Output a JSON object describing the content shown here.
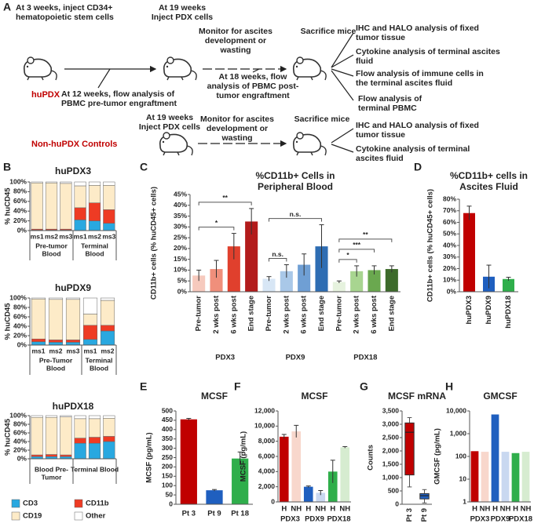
{
  "panel_labels": [
    "A",
    "B",
    "C",
    "D",
    "E",
    "F",
    "G",
    "H"
  ],
  "diagram": {
    "huPDX": {
      "label": "huPDX",
      "steps": [
        [
          "At 3 weeks, inject CD34+",
          "hematopoietic stem cells"
        ],
        [
          "At 19 weeks",
          "Inject PDX cells"
        ],
        [
          "Monitor for ascites",
          "development or",
          "wasting"
        ],
        [
          "Sacrifice mice"
        ]
      ],
      "flow_steps": [
        [
          "At 12 weeks, flow analysis of",
          "PBMC pre-tumor engraftment"
        ],
        [
          "At 18 weeks, flow",
          "analysis of PBMC post-",
          "tumor engraftment"
        ]
      ],
      "outcomes": [
        [
          "IHC and HALO analysis of fixed",
          "tumor tissue"
        ],
        [
          "Cytokine analysis of terminal ascites",
          "fluid"
        ],
        [
          "Flow analysis of immune cells in",
          "the terminal ascites fluid"
        ],
        [
          "Flow analysis of",
          "terminal PBMC"
        ]
      ]
    },
    "controls": {
      "label": "Non-huPDX Controls",
      "steps": [
        [
          "At 19 weeks",
          "Inject PDX cells"
        ],
        [
          "Monitor for ascites",
          "development or",
          "wasting"
        ],
        [
          "Sacrifice mice"
        ]
      ],
      "outcomes": [
        [
          "IHC and HALO analysis of fixed",
          "tumor tissue"
        ],
        [
          "Cytokine analysis of terminal",
          "ascites fluid"
        ]
      ]
    }
  },
  "chart_data": [
    {
      "type": "stacked_bar",
      "title": "huPDX3",
      "ylabel": "% huCD45",
      "ylim": [
        0,
        100
      ],
      "yticks": [
        {
          "value": 0,
          "label": "0%"
        },
        {
          "value": 20,
          "label": "20%"
        },
        {
          "value": 40,
          "label": "40%"
        },
        {
          "value": 60,
          "label": "60%"
        },
        {
          "value": 80,
          "label": "80%"
        },
        {
          "value": 100,
          "label": "100%"
        }
      ],
      "groups": [
        {
          "label": [
            "Pre-tumor",
            "Blood"
          ],
          "categories": [
            "ms1",
            "ms2",
            "ms3"
          ]
        },
        {
          "label": [
            "Terminal",
            "Blood"
          ],
          "categories": [
            "ms1",
            "ms2",
            "ms3"
          ]
        }
      ],
      "series": [
        {
          "color": "#29a8e0",
          "values": [
            1,
            1,
            1,
            22,
            20,
            15
          ]
        },
        {
          "color": "#ee3b24",
          "values": [
            2,
            2,
            2,
            25,
            37,
            28
          ]
        },
        {
          "color": "#fdebc8",
          "values": [
            95,
            95,
            94,
            45,
            36,
            50
          ]
        },
        {
          "color": "#ffffff",
          "values": [
            2,
            2,
            3,
            8,
            7,
            7
          ]
        }
      ]
    },
    {
      "type": "stacked_bar",
      "title": "huPDX9",
      "ylabel": "% huCD45",
      "ylim": [
        0,
        100
      ],
      "yticks": [
        {
          "value": 0,
          "label": "0%"
        },
        {
          "value": 20,
          "label": "20%"
        },
        {
          "value": 40,
          "label": "40%"
        },
        {
          "value": 60,
          "label": "60%"
        },
        {
          "value": 80,
          "label": "80%"
        },
        {
          "value": 100,
          "label": "100%"
        }
      ],
      "groups": [
        {
          "label": [
            "Pre-Tumor",
            "Blood"
          ],
          "categories": [
            "ms1",
            "ms2",
            "ms3"
          ]
        },
        {
          "label": [
            "Terminal",
            "Blood"
          ],
          "categories": [
            "ms1",
            "ms2"
          ]
        }
      ],
      "series": [
        {
          "color": "#29a8e0",
          "values": [
            7,
            6,
            6,
            12,
            30
          ]
        },
        {
          "color": "#ee3b24",
          "values": [
            6,
            5,
            5,
            30,
            12
          ]
        },
        {
          "color": "#fdebc8",
          "values": [
            85,
            86,
            86,
            24,
            53
          ]
        },
        {
          "color": "#ffffff",
          "values": [
            2,
            3,
            3,
            34,
            5
          ]
        }
      ]
    },
    {
      "type": "stacked_bar",
      "title": "huPDX18",
      "ylabel": "% huCD45",
      "ylim": [
        0,
        100
      ],
      "legend": "bottom",
      "yticks": [
        {
          "value": 0,
          "label": "0%"
        },
        {
          "value": 20,
          "label": "20%"
        },
        {
          "value": 40,
          "label": "40%"
        },
        {
          "value": 60,
          "label": "60%"
        },
        {
          "value": 80,
          "label": "80%"
        },
        {
          "value": 100,
          "label": "100%"
        }
      ],
      "groups": [
        {
          "label": [
            "Blood Pre-",
            "Tumor"
          ],
          "categories": [
            null,
            null,
            null
          ]
        },
        {
          "label": [
            "Terminal Blood"
          ],
          "categories": [
            null,
            null,
            null
          ]
        }
      ],
      "series": [
        {
          "name": "CD3",
          "color": "#29a8e0",
          "values": [
            5,
            5,
            5,
            36,
            36,
            40
          ]
        },
        {
          "name": "CD11b",
          "color": "#ee3b24",
          "values": [
            4,
            5,
            4,
            12,
            14,
            12
          ]
        },
        {
          "name": "CD19",
          "color": "#fdebc8",
          "values": [
            87,
            86,
            88,
            45,
            43,
            42
          ]
        },
        {
          "name": "Other",
          "color": "#ffffff",
          "values": [
            4,
            4,
            3,
            7,
            7,
            6
          ]
        }
      ]
    },
    {
      "type": "bar",
      "title": [
        "%CD11b+ Cells in",
        "Peripheral Blood"
      ],
      "ylabel": "CD11b+ cells (% huCD45+ cells)",
      "ylim": [
        0,
        45
      ],
      "yticks": [
        {
          "value": 0,
          "label": "0%"
        },
        {
          "value": 5,
          "label": "5%"
        },
        {
          "value": 10,
          "label": "10%"
        },
        {
          "value": 15,
          "label": "15%"
        },
        {
          "value": 20,
          "label": "20%"
        },
        {
          "value": 25,
          "label": "25%"
        },
        {
          "value": 30,
          "label": "30%"
        },
        {
          "value": 35,
          "label": "35%"
        },
        {
          "value": 40,
          "label": "40%"
        },
        {
          "value": 45,
          "label": "45%"
        }
      ],
      "groups": [
        {
          "label": "PDX3",
          "categories": [
            "Pre-tumor",
            "2 wks post",
            "6 wks post",
            "End stage"
          ],
          "values": [
            7.5,
            10.5,
            21,
            32.5
          ],
          "errors": [
            2.5,
            4,
            6,
            6
          ],
          "colors": [
            "#f6c9bd",
            "#f08f7b",
            "#e0402d",
            "#b31b1b"
          ],
          "significance": [
            null,
            null,
            "*",
            "**"
          ]
        },
        {
          "label": "PDX9",
          "categories": [
            "Pre-tumor",
            "2 wks post",
            "6 wks post",
            "End stage"
          ],
          "values": [
            6,
            9.5,
            12.5,
            21
          ],
          "errors": [
            1,
            3,
            5,
            10
          ],
          "colors": [
            "#d7e6f5",
            "#a9c8e8",
            "#6f9fd4",
            "#2e6db3"
          ],
          "significance": [
            null,
            "n.s.",
            null,
            "n.s."
          ]
        },
        {
          "label": "PDX18",
          "categories": [
            "Pre-tumor",
            "2 wks post",
            "6 wks post",
            "End stage"
          ],
          "values": [
            4.5,
            9.5,
            10,
            10.5
          ],
          "errors": [
            0.5,
            2.5,
            2,
            1.5
          ],
          "colors": [
            "#e6f2de",
            "#a8d590",
            "#6aa84f",
            "#3d6b2b"
          ],
          "significance": [
            null,
            "*",
            "***",
            "**"
          ]
        }
      ]
    },
    {
      "type": "bar",
      "title": [
        "%CD11b+ cells in",
        "Ascites Fluid"
      ],
      "ylabel": "CD11b+ cells (% huCD45+ cells)",
      "ylim": [
        0,
        80
      ],
      "yticks": [
        {
          "value": 0,
          "label": "0%"
        },
        {
          "value": 10,
          "label": "10%"
        },
        {
          "value": 20,
          "label": "20%"
        },
        {
          "value": 30,
          "label": "30%"
        },
        {
          "value": 40,
          "label": "40%"
        },
        {
          "value": 50,
          "label": "50%"
        },
        {
          "value": 60,
          "label": "60%"
        },
        {
          "value": 70,
          "label": "70%"
        },
        {
          "value": 80,
          "label": "80%"
        }
      ],
      "categories": [
        "huPDX3",
        "huPDX9",
        "huPDX18"
      ],
      "values": [
        68,
        13,
        11
      ],
      "errors": [
        6,
        10,
        1.5
      ],
      "colors": [
        "#c00000",
        "#1f5fbf",
        "#2fae4b"
      ]
    },
    {
      "type": "bar",
      "title": "MCSF",
      "ylabel": "MCSF (pg/mL)",
      "ylim": [
        0,
        500
      ],
      "yticks": [
        0,
        50,
        100,
        150,
        200,
        250,
        300,
        350,
        400,
        450,
        500
      ],
      "categories": [
        "Pt 3",
        "Pt 9",
        "Pt 18"
      ],
      "values": [
        455,
        75,
        245
      ],
      "errors": [
        5,
        4,
        35
      ],
      "colors": [
        "#c00000",
        "#1f5fbf",
        "#2fae4b"
      ]
    },
    {
      "type": "bar",
      "title": "MCSF",
      "ylabel": "MCSF (pg/mL)",
      "ylim": [
        0,
        12000
      ],
      "yticks": [
        0,
        {
          "value": 2000,
          "label": "2,000"
        },
        {
          "value": 4000,
          "label": "4,000"
        },
        {
          "value": 6000,
          "label": "6,000"
        },
        {
          "value": 8000,
          "label": "8,000"
        },
        {
          "value": 10000,
          "label": "10,000"
        },
        {
          "value": 12000,
          "label": "12,000"
        }
      ],
      "groups": [
        {
          "label": "PDX3",
          "categories": [
            "H",
            "NH"
          ],
          "values": [
            8600,
            9300
          ],
          "errors": [
            300,
            800
          ],
          "colors": [
            "#c00000",
            "#f8d7cc"
          ]
        },
        {
          "label": "PDX9",
          "categories": [
            "H",
            "NH"
          ],
          "values": [
            2000,
            1200
          ],
          "errors": [
            100,
            300
          ],
          "colors": [
            "#1f5fbf",
            "#c9d8f0"
          ]
        },
        {
          "label": "PDX18",
          "categories": [
            "H",
            "NH"
          ],
          "values": [
            4000,
            7200
          ],
          "errors": [
            1500,
            100
          ],
          "colors": [
            "#2fae4b",
            "#d6ecd0"
          ]
        }
      ]
    },
    {
      "type": "box",
      "title": "MCSF mRNA",
      "ylabel": "Counts",
      "ylim": [
        0,
        3500
      ],
      "yticks": [
        0,
        500,
        {
          "value": 1000,
          "label": "1,000"
        },
        {
          "value": 1500,
          "label": "1,500"
        },
        {
          "value": 2000,
          "label": "2,000"
        },
        {
          "value": 2500,
          "label": "2,500"
        },
        {
          "value": 3000,
          "label": "3,000"
        },
        {
          "value": 3500,
          "label": "3,500"
        }
      ],
      "categories": [
        "Pt 3",
        "Pt 9"
      ],
      "min": [
        650,
        50
      ],
      "q1": [
        1100,
        200
      ],
      "median": [
        2700,
        320
      ],
      "q3": [
        3050,
        400
      ],
      "max": [
        3250,
        550
      ],
      "colors": [
        "#c00000",
        "#1f5fbf"
      ]
    },
    {
      "type": "bar",
      "title": "GMCSF",
      "ylabel": "GMCSF (pg/mL)",
      "log": true,
      "ylim": [
        1,
        10000
      ],
      "yticks": [
        1,
        10,
        100,
        {
          "value": 1000,
          "label": "1,000"
        },
        {
          "value": 10000,
          "label": "10,000"
        }
      ],
      "groups": [
        {
          "label": "PDX3",
          "categories": [
            "H",
            "NH"
          ],
          "values": [
            170,
            160
          ],
          "colors": [
            "#c00000",
            "#f8d7cc"
          ]
        },
        {
          "label": "PDX9",
          "categories": [
            "H",
            "NH"
          ],
          "values": [
            7000,
            160
          ],
          "colors": [
            "#1f5fbf",
            "#c9d8f0"
          ]
        },
        {
          "label": "PDX18",
          "categories": [
            "H",
            "NH"
          ],
          "values": [
            140,
            160
          ],
          "colors": [
            "#2fae4b",
            "#d6ecd0"
          ]
        }
      ]
    }
  ]
}
